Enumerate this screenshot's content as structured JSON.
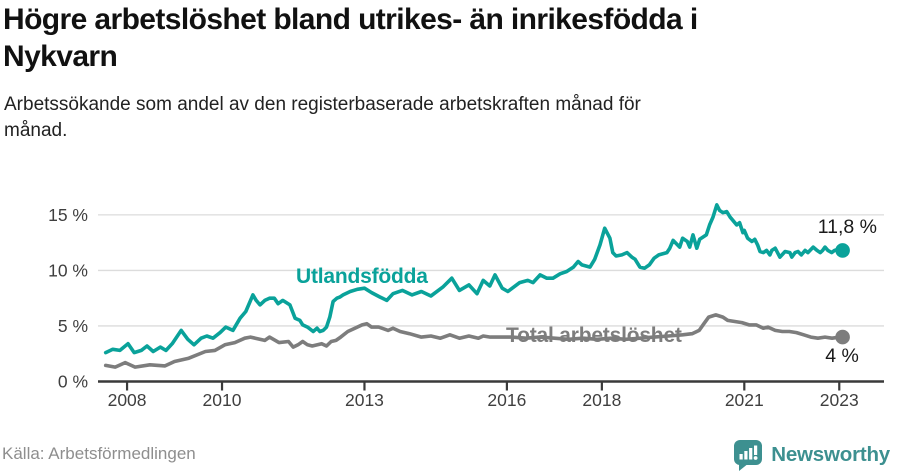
{
  "header": {
    "title": "Högre arbetslöshet bland utrikes- än inrikesfödda i Nykvarn",
    "title_lines": [
      "Högre arbetslöshet bland utrikes- än inrikesfödda i",
      "Nykvarn"
    ],
    "subtitle": "Arbetssökande som andel av den registerbaserade arbetskraften månad för månad.",
    "subtitle_lines": [
      "Arbetssökande som andel av den registerbaserade arbetskraften månad för",
      "månad."
    ]
  },
  "colors": {
    "accent_teal": "#0aa29a",
    "line_gray": "#7d7d7d",
    "gridline": "#dcdcdc",
    "axis": "#3a3a3a",
    "tick_text": "#3f3f3f",
    "brand_teal": "#3d9090"
  },
  "chart_data": {
    "type": "line",
    "title": "Högre arbetslöshet bland utrikes- än inrikesfödda i Nykvarn",
    "subtitle": "Arbetssökande som andel av den registerbaserade arbetskraften månad för månad.",
    "xlabel": "",
    "ylabel": "",
    "x_range": [
      2007.43,
      2023.9
    ],
    "y_range": [
      0,
      16.7
    ],
    "grid": "horizontal",
    "legend_position": "inline-labels",
    "x_ticks": [
      2008,
      2010,
      2013,
      2016,
      2018,
      2021,
      2023
    ],
    "x_tick_labels": [
      "2008",
      "2010",
      "2013",
      "2016",
      "2018",
      "2021",
      "2023"
    ],
    "y_ticks": [
      0,
      5,
      10,
      15
    ],
    "y_tick_labels": [
      "0 %",
      "5 %",
      "10 %",
      "15 %"
    ],
    "series": [
      {
        "name": "Total arbetslöshet",
        "color": "#7d7d7d",
        "end_label": "4 %",
        "end_value": 4.0,
        "points": [
          [
            2007.55,
            1.45
          ],
          [
            2007.75,
            1.3
          ],
          [
            2007.96,
            1.7
          ],
          [
            2008.17,
            1.3
          ],
          [
            2008.48,
            1.5
          ],
          [
            2008.8,
            1.4
          ],
          [
            2009.0,
            1.8
          ],
          [
            2009.3,
            2.1
          ],
          [
            2009.65,
            2.7
          ],
          [
            2009.85,
            2.8
          ],
          [
            2010.06,
            3.3
          ],
          [
            2010.27,
            3.5
          ],
          [
            2010.48,
            3.9
          ],
          [
            2010.6,
            4.0
          ],
          [
            2010.7,
            3.9
          ],
          [
            2010.9,
            3.7
          ],
          [
            2011.0,
            4.0
          ],
          [
            2011.2,
            3.5
          ],
          [
            2011.4,
            3.6
          ],
          [
            2011.5,
            3.1
          ],
          [
            2011.6,
            3.3
          ],
          [
            2011.7,
            3.6
          ],
          [
            2011.8,
            3.3
          ],
          [
            2011.9,
            3.2
          ],
          [
            2012.1,
            3.4
          ],
          [
            2012.2,
            3.2
          ],
          [
            2012.3,
            3.6
          ],
          [
            2012.4,
            3.7
          ],
          [
            2012.5,
            4.0
          ],
          [
            2012.65,
            4.5
          ],
          [
            2012.85,
            4.9
          ],
          [
            2012.95,
            5.1
          ],
          [
            2013.05,
            5.2
          ],
          [
            2013.15,
            4.9
          ],
          [
            2013.3,
            4.9
          ],
          [
            2013.5,
            4.6
          ],
          [
            2013.6,
            4.8
          ],
          [
            2013.75,
            4.5
          ],
          [
            2013.95,
            4.3
          ],
          [
            2014.2,
            4.0
          ],
          [
            2014.4,
            4.1
          ],
          [
            2014.6,
            3.9
          ],
          [
            2014.8,
            4.2
          ],
          [
            2015.0,
            3.9
          ],
          [
            2015.2,
            4.1
          ],
          [
            2015.4,
            3.9
          ],
          [
            2015.5,
            4.1
          ],
          [
            2015.65,
            4.0
          ],
          [
            2015.85,
            4.0
          ],
          [
            2016.1,
            4.0
          ],
          [
            2016.4,
            3.9
          ],
          [
            2016.7,
            4.0
          ],
          [
            2017.0,
            3.9
          ],
          [
            2017.3,
            3.8
          ],
          [
            2017.6,
            3.9
          ],
          [
            2017.9,
            3.8
          ],
          [
            2018.2,
            3.9
          ],
          [
            2018.5,
            3.8
          ],
          [
            2018.8,
            3.9
          ],
          [
            2019.1,
            4.0
          ],
          [
            2019.4,
            4.1
          ],
          [
            2019.7,
            4.2
          ],
          [
            2019.9,
            4.3
          ],
          [
            2020.05,
            4.6
          ],
          [
            2020.15,
            5.2
          ],
          [
            2020.25,
            5.8
          ],
          [
            2020.4,
            6.0
          ],
          [
            2020.55,
            5.8
          ],
          [
            2020.65,
            5.5
          ],
          [
            2020.8,
            5.4
          ],
          [
            2020.95,
            5.3
          ],
          [
            2021.1,
            5.1
          ],
          [
            2021.25,
            5.1
          ],
          [
            2021.4,
            4.8
          ],
          [
            2021.5,
            4.9
          ],
          [
            2021.65,
            4.6
          ],
          [
            2021.8,
            4.5
          ],
          [
            2021.95,
            4.5
          ],
          [
            2022.1,
            4.4
          ],
          [
            2022.25,
            4.2
          ],
          [
            2022.4,
            4.0
          ],
          [
            2022.55,
            3.9
          ],
          [
            2022.7,
            4.0
          ],
          [
            2022.85,
            3.9
          ],
          [
            2023.0,
            4.0
          ],
          [
            2023.07,
            4.0
          ]
        ]
      },
      {
        "name": "Utlandsfödda",
        "color": "#0aa29a",
        "end_label": "11,8 %",
        "end_value": 11.8,
        "points": [
          [
            2007.55,
            2.6
          ],
          [
            2007.7,
            2.9
          ],
          [
            2007.85,
            2.8
          ],
          [
            2008.02,
            3.4
          ],
          [
            2008.15,
            2.6
          ],
          [
            2008.3,
            2.8
          ],
          [
            2008.42,
            3.2
          ],
          [
            2008.55,
            2.7
          ],
          [
            2008.7,
            3.1
          ],
          [
            2008.82,
            2.8
          ],
          [
            2008.95,
            3.4
          ],
          [
            2009.14,
            4.6
          ],
          [
            2009.28,
            3.8
          ],
          [
            2009.41,
            3.3
          ],
          [
            2009.56,
            3.9
          ],
          [
            2009.68,
            4.1
          ],
          [
            2009.81,
            3.9
          ],
          [
            2009.96,
            4.4
          ],
          [
            2010.08,
            4.9
          ],
          [
            2010.23,
            4.6
          ],
          [
            2010.38,
            5.7
          ],
          [
            2010.5,
            6.3
          ],
          [
            2010.65,
            7.8
          ],
          [
            2010.72,
            7.3
          ],
          [
            2010.8,
            6.9
          ],
          [
            2010.9,
            7.3
          ],
          [
            2011.0,
            7.5
          ],
          [
            2011.1,
            7.5
          ],
          [
            2011.18,
            7.0
          ],
          [
            2011.28,
            7.3
          ],
          [
            2011.43,
            6.9
          ],
          [
            2011.54,
            5.7
          ],
          [
            2011.64,
            5.5
          ],
          [
            2011.7,
            5.1
          ],
          [
            2011.8,
            4.9
          ],
          [
            2011.92,
            4.5
          ],
          [
            2012.0,
            4.8
          ],
          [
            2012.06,
            4.5
          ],
          [
            2012.13,
            4.6
          ],
          [
            2012.2,
            4.9
          ],
          [
            2012.27,
            5.8
          ],
          [
            2012.34,
            7.2
          ],
          [
            2012.42,
            7.5
          ],
          [
            2012.48,
            7.6
          ],
          [
            2012.55,
            7.8
          ],
          [
            2012.7,
            8.1
          ],
          [
            2012.85,
            8.3
          ],
          [
            2013.0,
            8.4
          ],
          [
            2013.15,
            8.0
          ],
          [
            2013.33,
            7.6
          ],
          [
            2013.47,
            7.3
          ],
          [
            2013.6,
            7.9
          ],
          [
            2013.8,
            8.2
          ],
          [
            2014.0,
            7.8
          ],
          [
            2014.2,
            8.1
          ],
          [
            2014.4,
            7.7
          ],
          [
            2014.65,
            8.5
          ],
          [
            2014.84,
            9.3
          ],
          [
            2015.0,
            8.2
          ],
          [
            2015.2,
            8.7
          ],
          [
            2015.37,
            7.9
          ],
          [
            2015.5,
            9.1
          ],
          [
            2015.64,
            8.6
          ],
          [
            2015.75,
            9.6
          ],
          [
            2015.9,
            8.4
          ],
          [
            2016.02,
            8.1
          ],
          [
            2016.27,
            8.9
          ],
          [
            2016.44,
            9.1
          ],
          [
            2016.55,
            8.9
          ],
          [
            2016.7,
            9.6
          ],
          [
            2016.84,
            9.3
          ],
          [
            2016.97,
            9.3
          ],
          [
            2017.12,
            9.7
          ],
          [
            2017.26,
            9.9
          ],
          [
            2017.4,
            10.3
          ],
          [
            2017.5,
            10.8
          ],
          [
            2017.58,
            10.5
          ],
          [
            2017.75,
            10.3
          ],
          [
            2017.85,
            11.0
          ],
          [
            2017.96,
            12.3
          ],
          [
            2018.06,
            13.8
          ],
          [
            2018.17,
            12.9
          ],
          [
            2018.23,
            11.6
          ],
          [
            2018.3,
            11.3
          ],
          [
            2018.42,
            11.4
          ],
          [
            2018.53,
            11.6
          ],
          [
            2018.63,
            11.2
          ],
          [
            2018.7,
            11.0
          ],
          [
            2018.8,
            10.3
          ],
          [
            2018.9,
            10.2
          ],
          [
            2019.0,
            10.5
          ],
          [
            2019.1,
            11.1
          ],
          [
            2019.2,
            11.4
          ],
          [
            2019.37,
            11.6
          ],
          [
            2019.43,
            12.0
          ],
          [
            2019.5,
            12.7
          ],
          [
            2019.64,
            12.1
          ],
          [
            2019.7,
            12.9
          ],
          [
            2019.8,
            12.6
          ],
          [
            2019.85,
            12.1
          ],
          [
            2019.92,
            13.2
          ],
          [
            2020.0,
            12.0
          ],
          [
            2020.06,
            12.8
          ],
          [
            2020.2,
            13.2
          ],
          [
            2020.27,
            14.1
          ],
          [
            2020.34,
            14.8
          ],
          [
            2020.42,
            15.9
          ],
          [
            2020.48,
            15.4
          ],
          [
            2020.55,
            15.2
          ],
          [
            2020.63,
            15.3
          ],
          [
            2020.7,
            14.8
          ],
          [
            2020.84,
            14.1
          ],
          [
            2020.9,
            14.3
          ],
          [
            2020.97,
            13.4
          ],
          [
            2021.0,
            13.6
          ],
          [
            2021.07,
            12.9
          ],
          [
            2021.16,
            12.6
          ],
          [
            2021.22,
            12.8
          ],
          [
            2021.28,
            12.3
          ],
          [
            2021.33,
            11.7
          ],
          [
            2021.4,
            11.6
          ],
          [
            2021.47,
            11.8
          ],
          [
            2021.54,
            11.4
          ],
          [
            2021.58,
            11.8
          ],
          [
            2021.65,
            12.0
          ],
          [
            2021.75,
            11.2
          ],
          [
            2021.86,
            11.7
          ],
          [
            2021.96,
            11.6
          ],
          [
            2022.0,
            11.2
          ],
          [
            2022.07,
            11.6
          ],
          [
            2022.13,
            11.7
          ],
          [
            2022.2,
            11.4
          ],
          [
            2022.28,
            11.8
          ],
          [
            2022.34,
            11.6
          ],
          [
            2022.45,
            12.1
          ],
          [
            2022.53,
            11.8
          ],
          [
            2022.6,
            11.6
          ],
          [
            2022.65,
            11.8
          ],
          [
            2022.7,
            12.1
          ],
          [
            2022.76,
            11.8
          ],
          [
            2022.84,
            11.6
          ],
          [
            2022.9,
            11.8
          ],
          [
            2022.97,
            11.9
          ],
          [
            2023.07,
            11.8
          ]
        ]
      }
    ]
  },
  "footer": {
    "source": "Källa: Arbetsförmedlingen",
    "brand": "Newsworthy"
  }
}
